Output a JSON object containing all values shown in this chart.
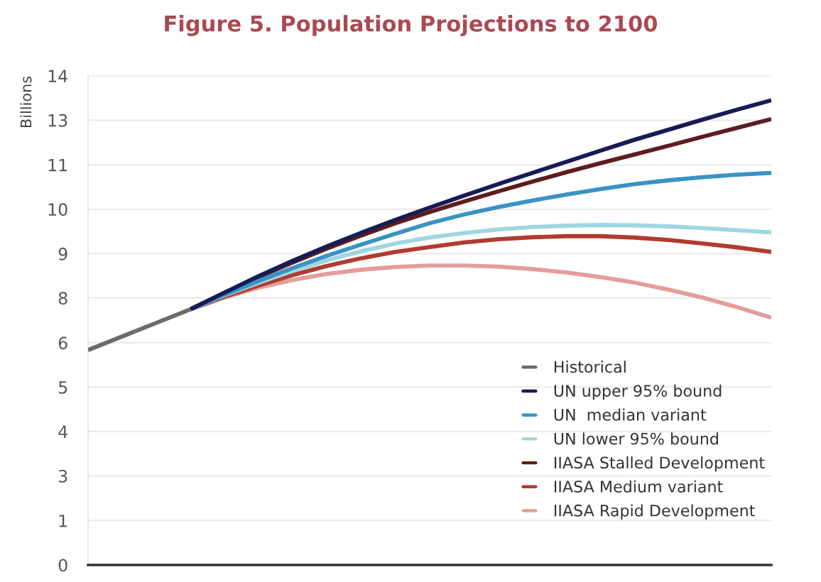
{
  "chart_data": {
    "type": "line",
    "title": "Figure 5. Population Projections to 2100",
    "ylabel": "Billions",
    "categories": [
      null,
      null,
      null,
      null,
      null,
      null,
      null,
      null,
      null,
      null,
      null,
      null,
      null,
      null,
      null,
      null,
      null,
      null,
      null,
      null,
      null
    ],
    "ylim": [
      0,
      14
    ],
    "yticks": [
      0,
      {
        "value": 1.27,
        "label": "1"
      },
      {
        "value": 2.55,
        "label": "3"
      },
      {
        "value": 3.82,
        "label": "4"
      },
      {
        "value": 5.09,
        "label": "5"
      },
      {
        "value": 6.36,
        "label": "6"
      },
      {
        "value": 7.64,
        "label": "8"
      },
      {
        "value": 8.91,
        "label": "9"
      },
      {
        "value": 10.18,
        "label": "10"
      },
      {
        "value": 11.45,
        "label": "11"
      },
      {
        "value": 12.73,
        "label": "13"
      },
      14
    ],
    "grid": "y",
    "legend": "bottom right",
    "line_style": "solid",
    "series": [
      {
        "name": "Historical",
        "color": "#6b6b6b",
        "values": [
          6.15,
          6.54,
          6.93,
          7.32,
          null,
          null,
          null,
          null,
          null,
          null,
          null,
          null,
          null,
          null,
          null,
          null,
          null,
          null,
          null,
          null,
          null
        ]
      },
      {
        "name": "UN upper 95% bound",
        "color": "#161c55",
        "values": [
          null,
          null,
          null,
          7.32,
          7.8,
          8.27,
          8.71,
          9.12,
          9.51,
          9.88,
          10.23,
          10.57,
          10.9,
          11.22,
          11.54,
          11.86,
          12.17,
          12.46,
          12.75,
          13.03,
          13.3
        ]
      },
      {
        "name": "UN  median variant",
        "color": "#3a93c4",
        "values": [
          null,
          null,
          null,
          7.32,
          7.74,
          8.13,
          8.5,
          8.85,
          9.17,
          9.48,
          9.78,
          10.03,
          10.24,
          10.43,
          10.6,
          10.76,
          10.9,
          11.01,
          11.1,
          11.17,
          11.22
        ]
      },
      {
        "name": "UN lower 95% bound",
        "color": "#9fd6e2",
        "values": [
          null,
          null,
          null,
          7.32,
          7.72,
          8.08,
          8.42,
          8.72,
          8.98,
          9.2,
          9.37,
          9.5,
          9.6,
          9.67,
          9.71,
          9.73,
          9.72,
          9.69,
          9.64,
          9.58,
          9.52
        ]
      },
      {
        "name": "IIASA Stalled Development",
        "color": "#5e1c1f",
        "values": [
          null,
          null,
          null,
          7.32,
          7.79,
          8.24,
          8.66,
          9.06,
          9.43,
          9.78,
          10.1,
          10.4,
          10.69,
          10.97,
          11.24,
          11.5,
          11.75,
          12.0,
          12.26,
          12.51,
          12.76
        ]
      },
      {
        "name": "IIASA Medium variant",
        "color": "#b23a2e",
        "values": [
          null,
          null,
          null,
          7.32,
          7.68,
          8.0,
          8.3,
          8.56,
          8.78,
          8.96,
          9.1,
          9.23,
          9.32,
          9.38,
          9.41,
          9.41,
          9.37,
          9.3,
          9.2,
          9.09,
          8.96
        ]
      },
      {
        "name": "IIASA Rapid Development",
        "color": "#e49c9c",
        "values": [
          null,
          null,
          null,
          7.32,
          7.66,
          7.94,
          8.16,
          8.33,
          8.45,
          8.53,
          8.57,
          8.57,
          8.54,
          8.47,
          8.37,
          8.24,
          8.08,
          7.88,
          7.65,
          7.38,
          7.08
        ]
      }
    ]
  }
}
